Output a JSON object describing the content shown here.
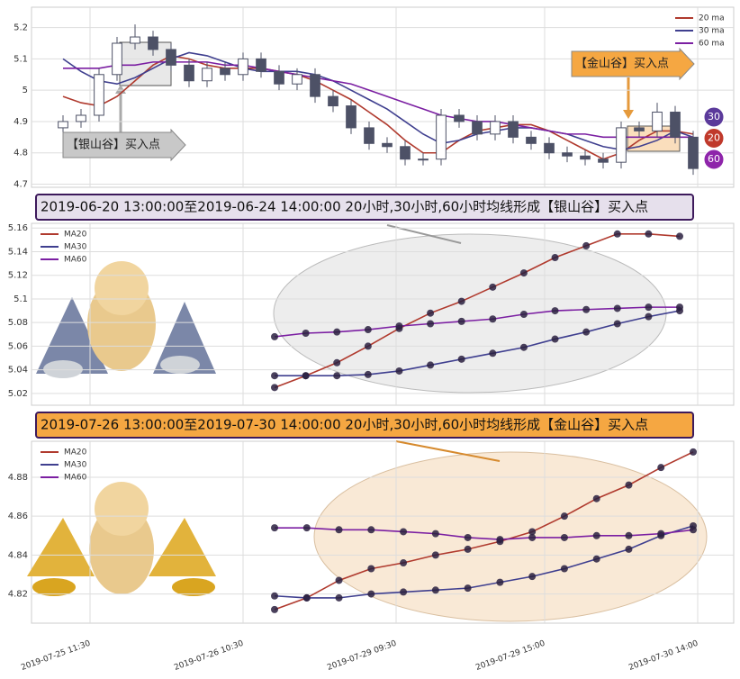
{
  "chart_data": [
    {
      "type": "candlestick",
      "open": [
        4.88,
        4.9,
        4.92,
        5.05,
        5.15,
        5.17,
        5.13,
        5.08,
        5.03,
        5.07,
        5.05,
        5.1,
        5.06,
        5.02,
        5.05,
        4.98,
        4.95,
        4.88,
        4.83,
        4.82,
        4.78,
        4.78,
        4.92,
        4.9,
        4.86,
        4.9,
        4.85,
        4.83,
        4.8,
        4.79,
        4.78,
        4.77,
        4.88,
        4.87,
        4.93,
        4.85
      ],
      "high": [
        4.92,
        4.94,
        5.07,
        5.17,
        5.21,
        5.19,
        5.15,
        5.1,
        5.09,
        5.09,
        5.12,
        5.12,
        5.08,
        5.07,
        5.07,
        5.0,
        4.97,
        4.9,
        4.85,
        4.84,
        4.8,
        4.94,
        4.94,
        4.92,
        4.92,
        4.92,
        4.87,
        4.85,
        4.82,
        4.81,
        4.8,
        4.9,
        4.9,
        4.96,
        4.95,
        4.87
      ],
      "low": [
        4.86,
        4.88,
        4.9,
        5.03,
        5.13,
        5.11,
        5.06,
        5.01,
        5.01,
        5.03,
        5.03,
        5.04,
        5.0,
        5.0,
        4.96,
        4.93,
        4.86,
        4.81,
        4.8,
        4.76,
        4.76,
        4.76,
        4.88,
        4.84,
        4.84,
        4.83,
        4.81,
        4.78,
        4.77,
        4.76,
        4.75,
        4.75,
        4.85,
        4.85,
        4.83,
        4.73
      ],
      "close": [
        4.9,
        4.92,
        5.05,
        5.15,
        5.17,
        5.13,
        5.08,
        5.03,
        5.07,
        5.05,
        5.1,
        5.06,
        5.02,
        5.05,
        4.98,
        4.95,
        4.88,
        4.83,
        4.82,
        4.78,
        4.78,
        4.92,
        4.9,
        4.86,
        4.9,
        4.85,
        4.83,
        4.8,
        4.79,
        4.78,
        4.77,
        4.88,
        4.87,
        4.93,
        4.85,
        4.75
      ],
      "up_color": "#ffffff",
      "down_color": "#4d5166",
      "series": [
        {
          "name": "20 ma",
          "color": "#b03a2e",
          "values": [
            4.98,
            4.96,
            4.95,
            4.98,
            5.03,
            5.08,
            5.11,
            5.1,
            5.08,
            5.07,
            5.07,
            5.07,
            5.06,
            5.05,
            5.03,
            5.0,
            4.97,
            4.93,
            4.89,
            4.84,
            4.8,
            4.8,
            4.84,
            4.87,
            4.88,
            4.89,
            4.89,
            4.87,
            4.84,
            4.81,
            4.78,
            4.8,
            4.84,
            4.87,
            4.87,
            4.86
          ]
        },
        {
          "name": "30 ma",
          "color": "#3f3f8f",
          "values": [
            5.1,
            5.06,
            5.03,
            5.02,
            5.04,
            5.07,
            5.1,
            5.12,
            5.11,
            5.09,
            5.07,
            5.06,
            5.06,
            5.06,
            5.05,
            5.03,
            5.0,
            4.97,
            4.94,
            4.9,
            4.86,
            4.83,
            4.84,
            4.86,
            4.87,
            4.88,
            4.88,
            4.87,
            4.86,
            4.84,
            4.82,
            4.81,
            4.82,
            4.84,
            4.87,
            4.85
          ]
        },
        {
          "name": "60 ma",
          "color": "#7b1fa2",
          "values": [
            5.07,
            5.07,
            5.07,
            5.08,
            5.08,
            5.09,
            5.09,
            5.09,
            5.09,
            5.08,
            5.08,
            5.07,
            5.06,
            5.05,
            5.04,
            5.03,
            5.02,
            5.0,
            4.98,
            4.96,
            4.94,
            4.92,
            4.91,
            4.9,
            4.9,
            4.89,
            4.88,
            4.87,
            4.86,
            4.86,
            4.85,
            4.85,
            4.85,
            4.85,
            4.85,
            4.85
          ]
        }
      ],
      "ylim": [
        4.69,
        5.265
      ],
      "yticks": [
        4.7,
        4.8,
        4.9,
        5.0,
        5.1,
        5.2
      ],
      "grid": true,
      "legend": "upper right",
      "annotations": [
        {
          "text": "【银山谷】买入点",
          "color": "#c8c8c8"
        },
        {
          "text": "【金山谷】买入点",
          "color": "#f5a742"
        }
      ],
      "badges": [
        {
          "label": 30,
          "color": "#5b3a9b"
        },
        {
          "label": 20,
          "color": "#c0392b"
        },
        {
          "label": 60,
          "color": "#8e24aa"
        }
      ]
    },
    {
      "type": "line",
      "title": "2019-06-20 13:00:00至2019-06-24 14:00:00 20小时,30小时,60小时均线形成【银山谷】买入点",
      "title_color": "#e6e0ec",
      "series": [
        {
          "name": "MA20",
          "color": "#b03a2e",
          "values": [
            5.025,
            5.035,
            5.046,
            5.06,
            5.075,
            5.088,
            5.098,
            5.11,
            5.122,
            5.135,
            5.145,
            5.155,
            5.155,
            5.153
          ]
        },
        {
          "name": "MA30",
          "color": "#3f3f8f",
          "values": [
            5.035,
            5.035,
            5.035,
            5.036,
            5.039,
            5.044,
            5.049,
            5.054,
            5.059,
            5.066,
            5.072,
            5.079,
            5.085,
            5.09
          ]
        },
        {
          "name": "MA60",
          "color": "#7b1fa2",
          "values": [
            5.068,
            5.071,
            5.072,
            5.074,
            5.077,
            5.079,
            5.081,
            5.083,
            5.087,
            5.09,
            5.091,
            5.092,
            5.093,
            5.093
          ]
        }
      ],
      "ylim": [
        5.01,
        5.164
      ],
      "yticks": [
        5.02,
        5.04,
        5.06,
        5.08,
        5.1,
        5.12,
        5.14,
        5.16
      ],
      "grid": true,
      "legend": "upper left"
    },
    {
      "type": "line",
      "title": "2019-07-26 13:00:00至2019-07-30 14:00:00 20小时,30小时,60小时均线形成【金山谷】买入点",
      "title_color": "#f5a742",
      "series": [
        {
          "name": "MA20",
          "color": "#b03a2e",
          "values": [
            4.812,
            4.818,
            4.827,
            4.833,
            4.836,
            4.84,
            4.843,
            4.847,
            4.852,
            4.86,
            4.869,
            4.876,
            4.885,
            4.893
          ]
        },
        {
          "name": "MA30",
          "color": "#3f3f8f",
          "values": [
            4.819,
            4.818,
            4.818,
            4.82,
            4.821,
            4.822,
            4.823,
            4.826,
            4.829,
            4.833,
            4.838,
            4.843,
            4.85,
            4.855
          ]
        },
        {
          "name": "MA60",
          "color": "#7b1fa2",
          "values": [
            4.854,
            4.854,
            4.853,
            4.853,
            4.852,
            4.851,
            4.849,
            4.848,
            4.849,
            4.849,
            4.85,
            4.85,
            4.851,
            4.853
          ]
        }
      ],
      "ylim": [
        4.805,
        4.8985
      ],
      "yticks": [
        4.82,
        4.84,
        4.86,
        4.88
      ],
      "grid": true,
      "legend": "upper left",
      "xtick_labels": [
        "2019-07-25 11:30",
        "2019-07-26 10:30",
        "2019-07-29 09:30",
        "2019-07-29 15:00",
        "2019-07-30 14:00"
      ]
    }
  ]
}
